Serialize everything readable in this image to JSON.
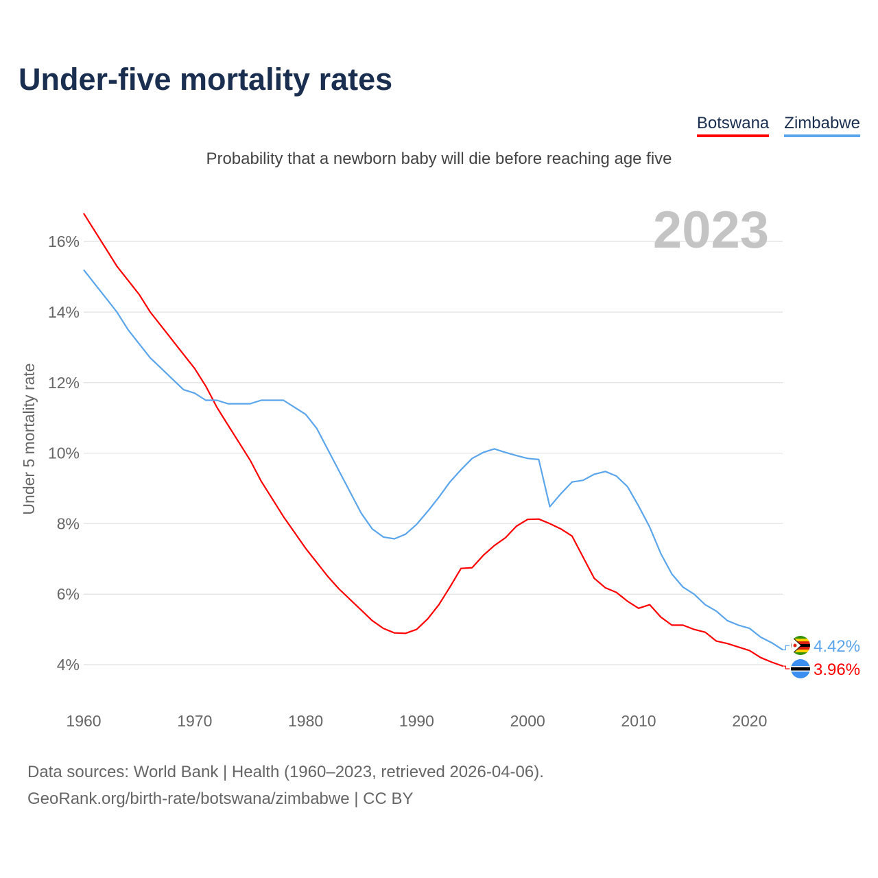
{
  "title": "Under-five mortality rates",
  "subtitle": "Probability that a newborn baby will die before reaching age five",
  "source_line1": "Data sources: World Bank | Health (1960–2023, retrieved 2026-04-06).",
  "source_line2": "GeoRank.org/birth-rate/botswana/zimbabwe | CC BY",
  "chart_data": {
    "type": "line",
    "title": "Under-five mortality rates",
    "xlabel": "",
    "ylabel": "Under 5 mortality rate",
    "year_label": "2023",
    "xlim": [
      1960,
      2023
    ],
    "ylim": [
      3,
      17
    ],
    "x_ticks": [
      1960,
      1970,
      1980,
      1990,
      2000,
      2010,
      2020
    ],
    "y_ticks": [
      4,
      6,
      8,
      10,
      12,
      14,
      16
    ],
    "y_tick_labels": [
      "4%",
      "6%",
      "8%",
      "10%",
      "12%",
      "14%",
      "16%"
    ],
    "x_tick_labels": [
      "1960",
      "1970",
      "1980",
      "1990",
      "2000",
      "2010",
      "2020"
    ],
    "grid": true,
    "legend_position": "top-right",
    "x": [
      1960,
      1961,
      1962,
      1963,
      1964,
      1965,
      1966,
      1967,
      1968,
      1969,
      1970,
      1971,
      1972,
      1973,
      1974,
      1975,
      1976,
      1977,
      1978,
      1979,
      1980,
      1981,
      1982,
      1983,
      1984,
      1985,
      1986,
      1987,
      1988,
      1989,
      1990,
      1991,
      1992,
      1993,
      1994,
      1995,
      1996,
      1997,
      1998,
      1999,
      2000,
      2001,
      2002,
      2003,
      2004,
      2005,
      2006,
      2007,
      2008,
      2009,
      2010,
      2011,
      2012,
      2013,
      2014,
      2015,
      2016,
      2017,
      2018,
      2019,
      2020,
      2021,
      2022,
      2023
    ],
    "series": [
      {
        "name": "Botswana",
        "color": "#ff0000",
        "end_label": "3.96%",
        "flag": "botswana-flag",
        "values": [
          16.8,
          16.3,
          15.8,
          15.3,
          14.9,
          14.5,
          14.0,
          13.6,
          13.2,
          12.8,
          12.4,
          11.9,
          11.3,
          10.8,
          10.3,
          9.8,
          9.2,
          8.7,
          8.2,
          7.75,
          7.3,
          6.9,
          6.5,
          6.15,
          5.85,
          5.55,
          5.25,
          5.03,
          4.9,
          4.89,
          5.0,
          5.3,
          5.7,
          6.2,
          6.73,
          6.75,
          7.1,
          7.38,
          7.6,
          7.93,
          8.12,
          8.13,
          8.0,
          7.85,
          7.65,
          7.05,
          6.45,
          6.18,
          6.05,
          5.8,
          5.6,
          5.7,
          5.35,
          5.12,
          5.12,
          5.0,
          4.92,
          4.67,
          4.6,
          4.5,
          4.4,
          4.2,
          4.07,
          3.96
        ]
      },
      {
        "name": "Zimbabwe",
        "color": "#5aa5ec",
        "end_label": "4.42%",
        "flag": "zimbabwe-flag",
        "values": [
          15.2,
          14.8,
          14.4,
          14.0,
          13.5,
          13.1,
          12.7,
          12.4,
          12.1,
          11.8,
          11.7,
          11.5,
          11.5,
          11.4,
          11.4,
          11.4,
          11.5,
          11.5,
          11.5,
          11.3,
          11.1,
          10.7,
          10.1,
          9.5,
          8.9,
          8.3,
          7.85,
          7.62,
          7.57,
          7.7,
          7.98,
          8.35,
          8.75,
          9.18,
          9.53,
          9.85,
          10.02,
          10.12,
          10.02,
          9.93,
          9.85,
          9.82,
          8.48,
          8.85,
          9.18,
          9.23,
          9.4,
          9.48,
          9.35,
          9.05,
          8.5,
          7.9,
          7.15,
          6.57,
          6.2,
          6.0,
          5.7,
          5.52,
          5.25,
          5.12,
          5.03,
          4.78,
          4.62,
          4.42
        ]
      }
    ]
  }
}
